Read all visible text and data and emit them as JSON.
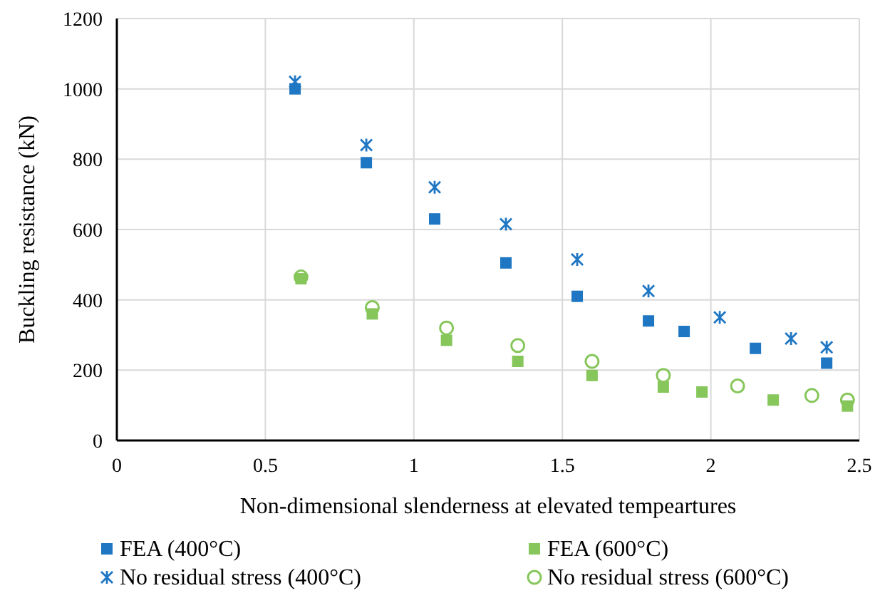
{
  "chart_data": {
    "type": "scatter",
    "xlabel": "Non-dimensional slenderness at elevated tempeartures",
    "ylabel": "Buckling resistance (kN)",
    "xlim": [
      0,
      2.5
    ],
    "xticks": [
      0,
      0.5,
      1,
      1.5,
      2,
      2.5
    ],
    "ylim": [
      0,
      1200
    ],
    "yticks": [
      0,
      200,
      400,
      600,
      800,
      1000,
      1200
    ],
    "grid": true,
    "legend": "bottom",
    "series": [
      {
        "name": "FEA (400°C)",
        "color": "#1f77c4",
        "marker": "square",
        "x": [
          0.6,
          0.84,
          1.07,
          1.31,
          1.55,
          1.79,
          1.91,
          2.15,
          2.39
        ],
        "values": [
          1000,
          790,
          630,
          505,
          410,
          340,
          310,
          262,
          220
        ]
      },
      {
        "name": "FEA (600°C)",
        "color": "#86c65a",
        "marker": "square",
        "x": [
          0.62,
          0.86,
          1.11,
          1.35,
          1.6,
          1.84,
          1.97,
          2.21,
          2.46
        ],
        "values": [
          460,
          360,
          285,
          225,
          185,
          152,
          138,
          115,
          98
        ]
      },
      {
        "name": "No residual stress (400°C)",
        "color": "#1f77c4",
        "marker": "cross",
        "x": [
          0.6,
          0.84,
          1.07,
          1.31,
          1.55,
          1.79,
          2.03,
          2.27,
          2.39
        ],
        "values": [
          1020,
          840,
          720,
          615,
          515,
          425,
          350,
          290,
          265
        ]
      },
      {
        "name": "No residual stress (600°C)",
        "color": "#86c65a",
        "marker": "circle",
        "x": [
          0.62,
          0.86,
          1.11,
          1.35,
          1.6,
          1.84,
          2.09,
          2.34,
          2.46
        ],
        "values": [
          465,
          378,
          320,
          270,
          225,
          185,
          155,
          128,
          115
        ]
      }
    ]
  }
}
